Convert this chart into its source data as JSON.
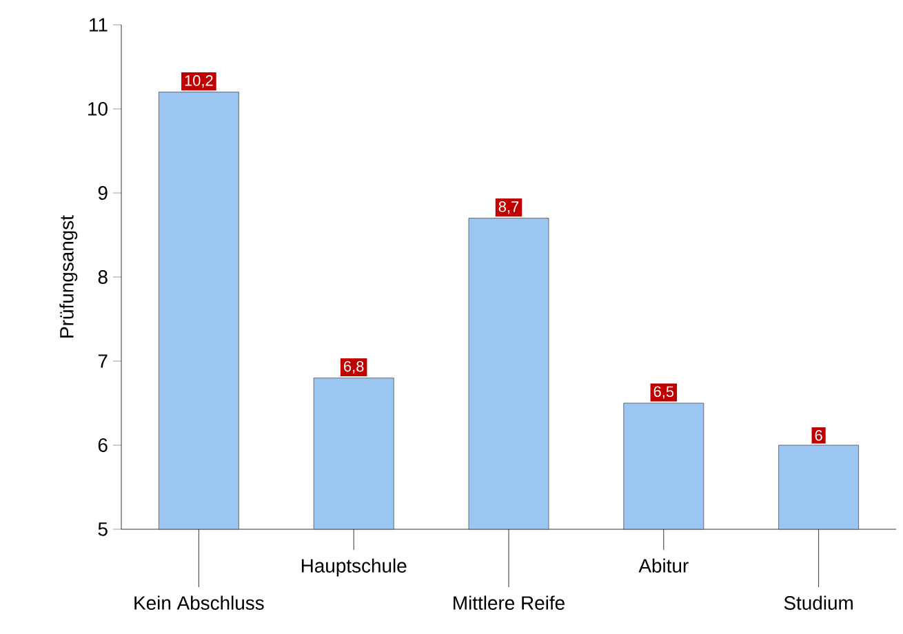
{
  "chart_data": {
    "type": "bar",
    "ylabel": "Prüfungsangst",
    "categories": [
      "Kein Abschluss",
      "Hauptschule",
      "Mittlere Reife",
      "Abitur",
      "Studium"
    ],
    "values": [
      10.2,
      6.8,
      8.7,
      6.5,
      6
    ],
    "value_labels": [
      "10,2",
      "6,8",
      "8,7",
      "6,5",
      "6"
    ],
    "color": "#9cc6f2",
    "ylim": [
      5,
      11
    ],
    "yticks": [
      5,
      6,
      7,
      8,
      9,
      10,
      11
    ],
    "grid": false
  }
}
